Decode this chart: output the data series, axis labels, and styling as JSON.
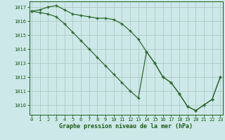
{
  "series1": [
    1016.7,
    1016.8,
    1017.0,
    1017.1,
    1016.8,
    1016.5,
    1016.4,
    1016.3,
    1016.2,
    1016.2,
    1016.1,
    1015.8,
    1015.3,
    1014.7,
    1013.8,
    1013.0,
    1012.0,
    1011.6,
    1010.8,
    1009.9,
    1009.6,
    1010.0,
    1010.4,
    1012.0
  ],
  "series2": [
    1016.7,
    1016.6,
    1016.5,
    1016.3,
    1015.8,
    1015.2,
    1014.6,
    1014.0,
    1013.4,
    1012.8,
    1012.2,
    1011.6,
    1011.0,
    1010.5,
    1013.8,
    1013.0,
    1012.0,
    1011.6,
    1010.8,
    1009.9,
    1009.6,
    1010.0,
    1010.4,
    1012.0
  ],
  "hours": [
    0,
    1,
    2,
    3,
    4,
    5,
    6,
    7,
    8,
    9,
    10,
    11,
    12,
    13,
    14,
    15,
    16,
    17,
    18,
    19,
    20,
    21,
    22,
    23
  ],
  "ylim": [
    1009.3,
    1017.4
  ],
  "yticks": [
    1010,
    1011,
    1012,
    1013,
    1014,
    1015,
    1016,
    1017
  ],
  "line_color": "#2d6a2d",
  "marker_color": "#2d6a2d",
  "bg_color": "#cde8e8",
  "grid_color": "#b0c8c8",
  "xlabel": "Graphe pression niveau de la mer (hPa)",
  "xlabel_color": "#1a5c1a",
  "tick_color": "#1a5c1a"
}
